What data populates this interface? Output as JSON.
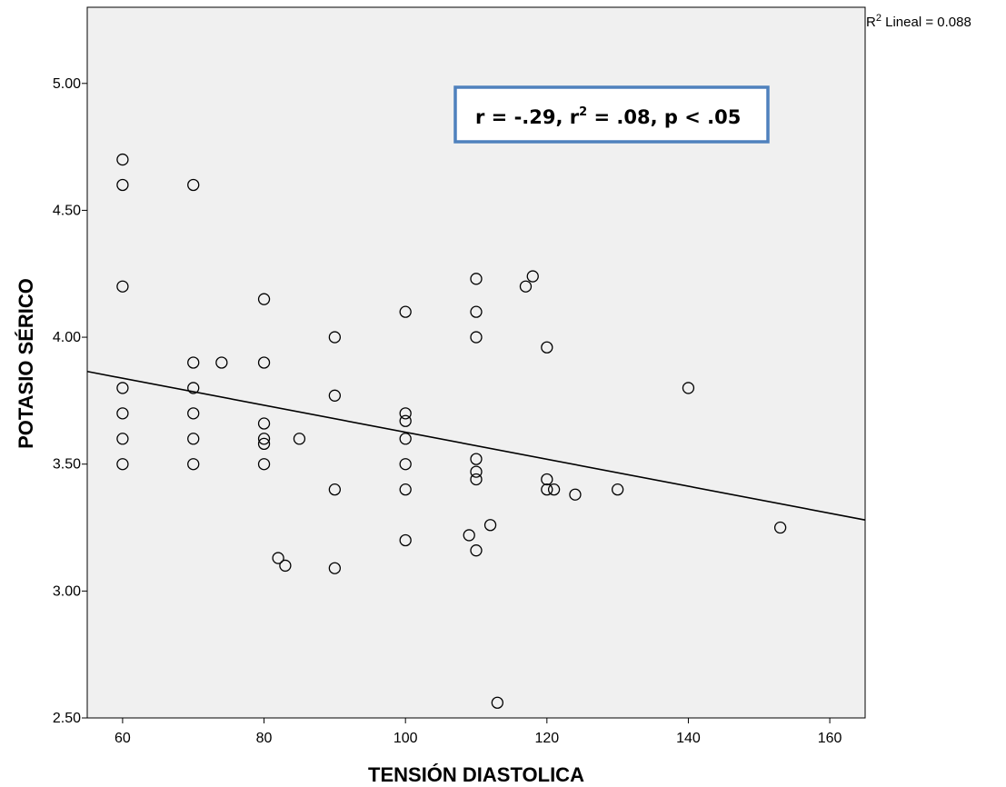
{
  "chart_data": {
    "type": "scatter",
    "title": "",
    "xlabel": "TENSIÓN DIASTOLICA",
    "ylabel": "POTASIO SÉRICO",
    "xlim": [
      55,
      165
    ],
    "ylim": [
      2.5,
      5.3
    ],
    "x_ticks": [
      60,
      80,
      100,
      120,
      140,
      160
    ],
    "x_tick_labels": [
      "60",
      "80",
      "100",
      "120",
      "140",
      "160"
    ],
    "y_ticks": [
      2.5,
      3.0,
      3.5,
      4.0,
      4.5,
      5.0
    ],
    "y_tick_labels": [
      "2.50",
      "3.00",
      "3.50",
      "4.00",
      "4.50",
      "5.00"
    ],
    "grid": false,
    "plot_background": "#f0f0f0",
    "marker_color": "#000000",
    "fit_line": {
      "x": [
        55,
        165
      ],
      "y": [
        3.865,
        3.28
      ],
      "color": "#000000"
    },
    "r2_label_prefix": "R",
    "r2_label_superscript": "2",
    "r2_label_suffix": " Lineal = 0.088",
    "stats_box": {
      "r_text": "r = -.29, r",
      "r_superscript": "2",
      "rest_text": " = .08, p < .05",
      "border_color": "#4f81bd"
    },
    "points": [
      {
        "x": 60,
        "y": 4.7
      },
      {
        "x": 60,
        "y": 4.6
      },
      {
        "x": 60,
        "y": 4.2
      },
      {
        "x": 60,
        "y": 3.8
      },
      {
        "x": 60,
        "y": 3.7
      },
      {
        "x": 60,
        "y": 3.6
      },
      {
        "x": 60,
        "y": 3.5
      },
      {
        "x": 70,
        "y": 4.6
      },
      {
        "x": 70,
        "y": 3.9
      },
      {
        "x": 70,
        "y": 3.8
      },
      {
        "x": 70,
        "y": 3.7
      },
      {
        "x": 70,
        "y": 3.6
      },
      {
        "x": 70,
        "y": 3.5
      },
      {
        "x": 74,
        "y": 3.9
      },
      {
        "x": 80,
        "y": 4.15
      },
      {
        "x": 80,
        "y": 3.9
      },
      {
        "x": 80,
        "y": 3.66
      },
      {
        "x": 80,
        "y": 3.6
      },
      {
        "x": 80,
        "y": 3.58
      },
      {
        "x": 80,
        "y": 3.5
      },
      {
        "x": 82,
        "y": 3.13
      },
      {
        "x": 83,
        "y": 3.1
      },
      {
        "x": 85,
        "y": 3.6
      },
      {
        "x": 90,
        "y": 4.0
      },
      {
        "x": 90,
        "y": 3.77
      },
      {
        "x": 90,
        "y": 3.4
      },
      {
        "x": 90,
        "y": 3.09
      },
      {
        "x": 100,
        "y": 4.1
      },
      {
        "x": 100,
        "y": 3.7
      },
      {
        "x": 100,
        "y": 3.67
      },
      {
        "x": 100,
        "y": 3.6
      },
      {
        "x": 100,
        "y": 3.5
      },
      {
        "x": 100,
        "y": 3.4
      },
      {
        "x": 100,
        "y": 3.2
      },
      {
        "x": 109,
        "y": 3.22
      },
      {
        "x": 110,
        "y": 4.23
      },
      {
        "x": 110,
        "y": 4.1
      },
      {
        "x": 110,
        "y": 4.0
      },
      {
        "x": 110,
        "y": 3.52
      },
      {
        "x": 110,
        "y": 3.47
      },
      {
        "x": 110,
        "y": 3.44
      },
      {
        "x": 110,
        "y": 3.16
      },
      {
        "x": 112,
        "y": 3.26
      },
      {
        "x": 113,
        "y": 2.56
      },
      {
        "x": 117,
        "y": 4.2
      },
      {
        "x": 118,
        "y": 4.24
      },
      {
        "x": 120,
        "y": 3.96
      },
      {
        "x": 120,
        "y": 3.44
      },
      {
        "x": 120,
        "y": 3.4
      },
      {
        "x": 121,
        "y": 3.4
      },
      {
        "x": 124,
        "y": 3.38
      },
      {
        "x": 130,
        "y": 3.4
      },
      {
        "x": 140,
        "y": 3.8
      },
      {
        "x": 153,
        "y": 3.25
      }
    ]
  }
}
